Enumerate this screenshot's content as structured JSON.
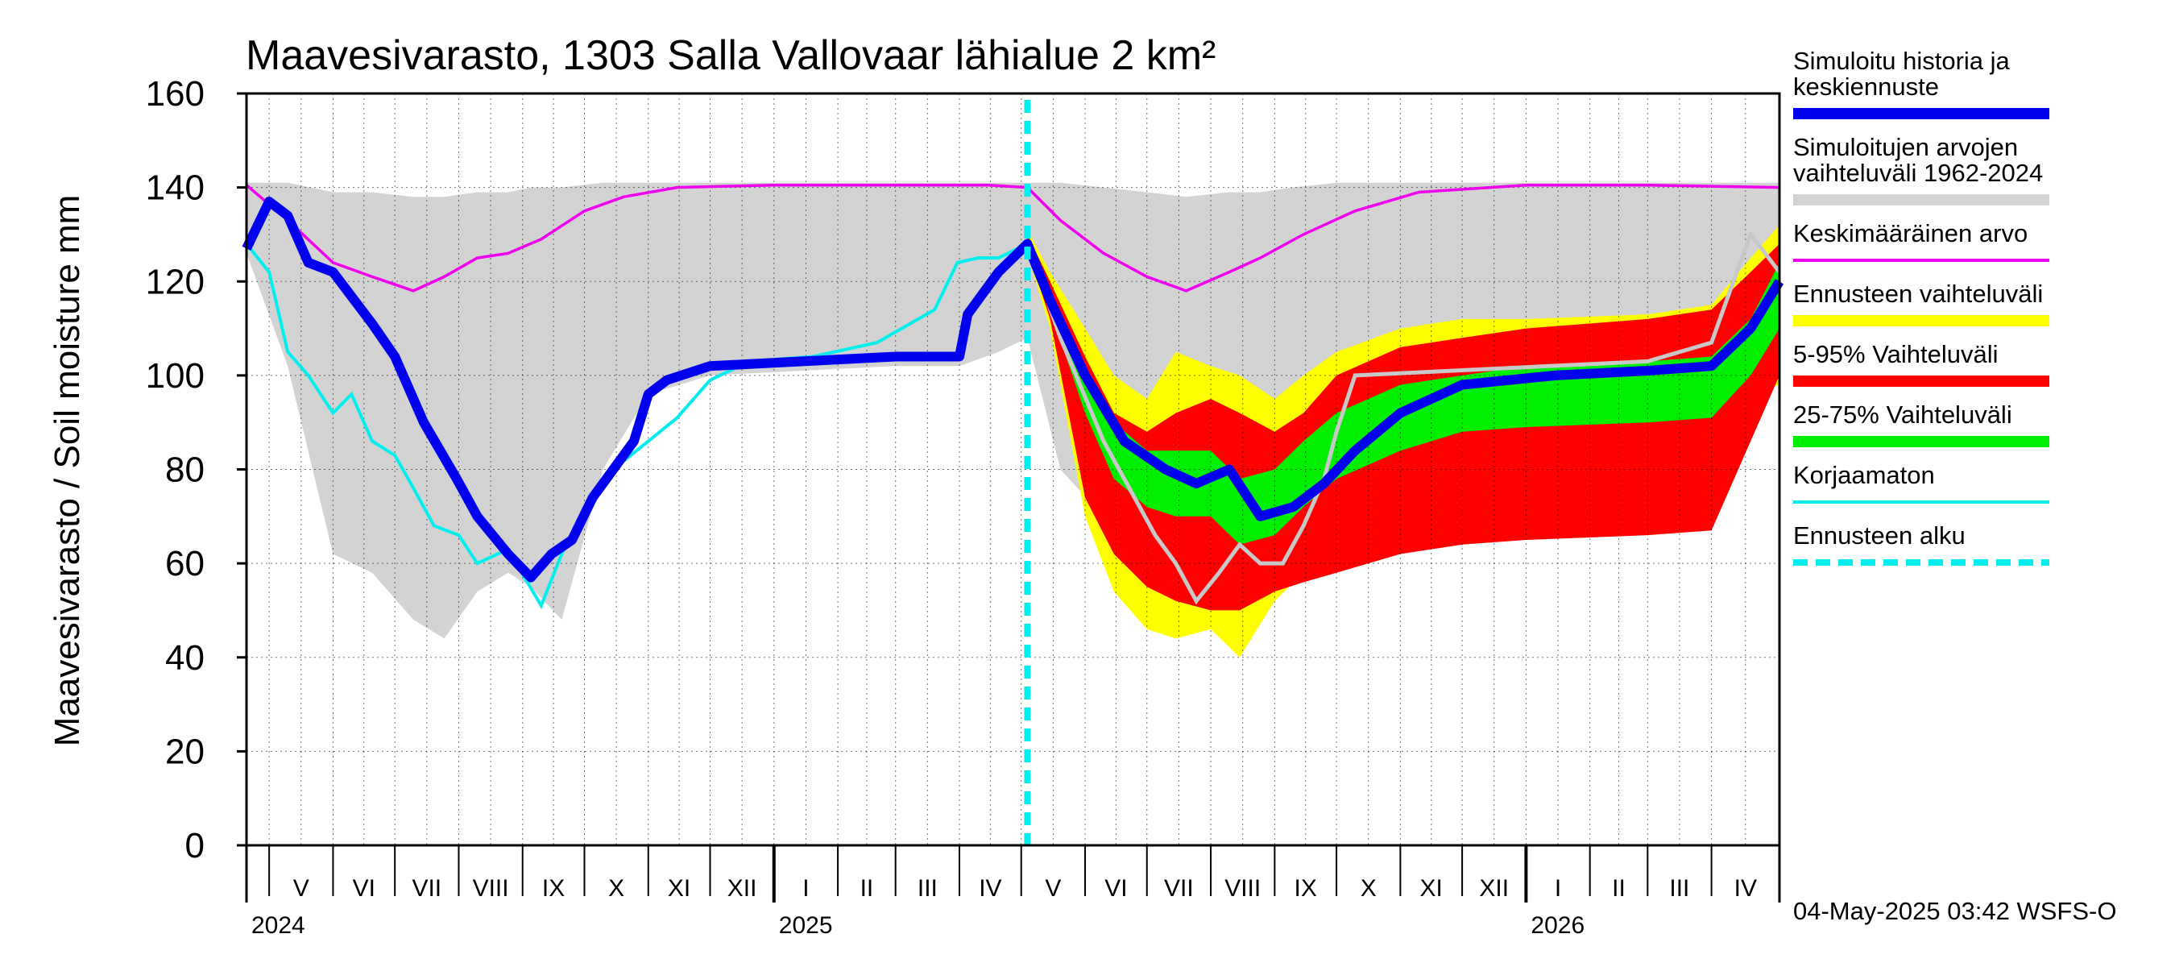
{
  "chart_data": {
    "type": "area",
    "title": "Maavesivarasto, 1303 Salla Vallovaar lähialue 2 km²",
    "ylabel": "Maavesivarasto / Soil moisture   mm",
    "ylim": [
      0,
      160
    ],
    "yticks": [
      "0",
      "20",
      "40",
      "60",
      "80",
      "100",
      "120",
      "140",
      "160"
    ],
    "xlim": [
      "2024-04-20",
      "2026-05-04"
    ],
    "forecast_start": "2025-05-04",
    "months": [
      {
        "label": "V",
        "start": "2024-05-01"
      },
      {
        "label": "VI",
        "start": "2024-06-01"
      },
      {
        "label": "VII",
        "start": "2024-07-01"
      },
      {
        "label": "VIII",
        "start": "2024-08-01"
      },
      {
        "label": "IX",
        "start": "2024-09-01"
      },
      {
        "label": "X",
        "start": "2024-10-01"
      },
      {
        "label": "XI",
        "start": "2024-11-01"
      },
      {
        "label": "XII",
        "start": "2024-12-01"
      },
      {
        "label": "I",
        "start": "2025-01-01"
      },
      {
        "label": "II",
        "start": "2025-02-01"
      },
      {
        "label": "III",
        "start": "2025-03-01"
      },
      {
        "label": "IV",
        "start": "2025-04-01"
      },
      {
        "label": "V",
        "start": "2025-05-01"
      },
      {
        "label": "VI",
        "start": "2025-06-01"
      },
      {
        "label": "VII",
        "start": "2025-07-01"
      },
      {
        "label": "VIII",
        "start": "2025-08-01"
      },
      {
        "label": "IX",
        "start": "2025-09-01"
      },
      {
        "label": "X",
        "start": "2025-10-01"
      },
      {
        "label": "XI",
        "start": "2025-11-01"
      },
      {
        "label": "XII",
        "start": "2025-12-01"
      },
      {
        "label": "I",
        "start": "2026-01-01"
      },
      {
        "label": "II",
        "start": "2026-02-01"
      },
      {
        "label": "III",
        "start": "2026-03-01"
      },
      {
        "label": "IV",
        "start": "2026-04-01"
      }
    ],
    "years": [
      {
        "label": "2024",
        "date": "2024-04-20"
      },
      {
        "label": "2025",
        "date": "2025-01-01"
      },
      {
        "label": "2026",
        "date": "2026-01-01"
      }
    ],
    "grid": true,
    "legend_position": "right",
    "legend": [
      {
        "key": "simulated",
        "lines": [
          "Simuloitu historia ja",
          "keskiennuste"
        ],
        "color": "#0000ee",
        "style": "line-thick"
      },
      {
        "key": "range",
        "lines": [
          "Simuloitujen arvojen",
          "vaihteluväli 1962-2024"
        ],
        "color": "#d3d3d3",
        "style": "line-thick"
      },
      {
        "key": "mean",
        "lines": [
          "Keskimääräinen arvo"
        ],
        "color": "#ee00ee",
        "style": "line-thin"
      },
      {
        "key": "forecast_range",
        "lines": [
          "Ennusteen vaihteluväli"
        ],
        "color": "#ffff00",
        "style": "line-thick"
      },
      {
        "key": "p5_95",
        "lines": [
          "5-95% Vaihteluväli"
        ],
        "color": "#ff0000",
        "style": "line-thick"
      },
      {
        "key": "p25_75",
        "lines": [
          "25-75% Vaihteluväli"
        ],
        "color": "#00ee00",
        "style": "line-thick"
      },
      {
        "key": "uncorrected",
        "lines": [
          "Korjaamaton"
        ],
        "color": "#00eeee",
        "style": "line-thin"
      },
      {
        "key": "forecast_start",
        "lines": [
          "Ennusteen alku"
        ],
        "color": "#00eeee",
        "style": "dashed"
      }
    ],
    "series": {
      "hist_range": {
        "x": [
          "2024-04-20",
          "2024-05-10",
          "2024-06-01",
          "2024-06-20",
          "2024-07-10",
          "2024-07-25",
          "2024-08-10",
          "2024-08-25",
          "2024-09-05",
          "2024-09-20",
          "2024-10-10",
          "2024-11-01",
          "2024-12-01",
          "2025-01-15",
          "2025-03-01",
          "2025-04-01",
          "2025-04-20",
          "2025-05-04",
          "2025-05-20",
          "2025-06-10",
          "2025-07-01",
          "2025-07-20",
          "2025-08-10",
          "2025-08-25",
          "2025-09-10",
          "2025-10-01",
          "2025-11-01",
          "2025-12-01",
          "2026-01-15",
          "2026-03-01",
          "2026-04-01",
          "2026-04-20",
          "2026-05-04"
        ],
        "upper": [
          141,
          141,
          139,
          139,
          138,
          138,
          139,
          139,
          140,
          140,
          141,
          141,
          141,
          141,
          141,
          141,
          141,
          141,
          141,
          140,
          139,
          138,
          139,
          139,
          140,
          141,
          141,
          141,
          141,
          141,
          141,
          141,
          141
        ],
        "lower": [
          126,
          102,
          62,
          58,
          48,
          44,
          54,
          58,
          55,
          48,
          80,
          96,
          100,
          101,
          102,
          102,
          105,
          108,
          80,
          70,
          64,
          62,
          64,
          74,
          80,
          98,
          101,
          101,
          102,
          103,
          104,
          108,
          120
        ]
      },
      "mean": {
        "x": [
          "2024-04-20",
          "2024-05-10",
          "2024-06-01",
          "2024-06-20",
          "2024-07-10",
          "2024-07-25",
          "2024-08-10",
          "2024-08-25",
          "2024-09-10",
          "2024-10-01",
          "2024-10-20",
          "2024-11-15",
          "2025-01-01",
          "2025-03-01",
          "2025-04-15",
          "2025-05-04",
          "2025-05-20",
          "2025-06-10",
          "2025-07-01",
          "2025-07-20",
          "2025-08-10",
          "2025-08-25",
          "2025-09-15",
          "2025-10-10",
          "2025-11-10",
          "2026-01-01",
          "2026-03-01",
          "2026-05-04"
        ],
        "y": [
          140.5,
          133,
          124,
          121,
          118,
          121,
          125,
          126,
          129,
          135,
          138,
          140,
          140.5,
          140.5,
          140.5,
          140,
          133,
          126,
          121,
          118,
          122,
          125,
          130,
          135,
          139,
          140.5,
          140.5,
          140
        ]
      },
      "simulated": {
        "x": [
          "2024-04-20",
          "2024-05-01",
          "2024-05-10",
          "2024-05-20",
          "2024-06-01",
          "2024-06-20",
          "2024-07-01",
          "2024-07-15",
          "2024-07-31",
          "2024-08-10",
          "2024-08-25",
          "2024-09-05",
          "2024-09-15",
          "2024-09-25",
          "2024-10-05",
          "2024-10-15",
          "2024-10-25",
          "2024-11-01",
          "2024-11-10",
          "2024-12-01",
          "2025-01-15",
          "2025-03-01",
          "2025-04-01",
          "2025-04-05",
          "2025-04-20",
          "2025-05-04",
          "2025-05-15",
          "2025-06-01",
          "2025-06-20",
          "2025-07-10",
          "2025-07-25",
          "2025-08-10",
          "2025-08-25",
          "2025-09-10",
          "2025-09-25",
          "2025-10-10",
          "2025-11-01",
          "2025-12-01",
          "2026-01-15",
          "2026-03-01",
          "2026-04-01",
          "2026-04-20",
          "2026-05-04"
        ],
        "y": [
          127,
          137,
          134,
          124,
          122,
          111,
          104,
          90,
          78,
          70,
          62,
          57,
          62,
          65,
          74,
          80,
          86,
          96,
          99,
          102,
          103,
          104,
          104,
          113,
          122,
          128,
          116,
          100,
          86,
          80,
          77,
          80,
          70,
          72,
          77,
          84,
          92,
          98,
          100,
          101,
          102,
          110,
          120
        ]
      },
      "uncorrected": {
        "x": [
          "2024-04-20",
          "2024-05-01",
          "2024-05-10",
          "2024-05-20",
          "2024-06-01",
          "2024-06-10",
          "2024-06-20",
          "2024-07-01",
          "2024-07-10",
          "2024-07-20",
          "2024-08-01",
          "2024-08-10",
          "2024-08-25",
          "2024-09-10",
          "2024-09-20",
          "2024-10-01",
          "2024-10-15",
          "2024-11-01",
          "2024-11-15",
          "2024-12-01",
          "2024-12-20",
          "2025-01-20",
          "2025-02-20",
          "2025-03-20",
          "2025-03-31",
          "2025-04-10",
          "2025-04-20",
          "2025-05-04"
        ],
        "y": [
          128,
          122,
          105,
          100,
          92,
          96,
          86,
          83,
          76,
          68,
          66,
          60,
          63,
          51,
          62,
          72,
          80,
          86,
          91,
          99,
          103,
          104,
          107,
          114,
          124,
          125,
          125,
          128
        ]
      },
      "uncorrected_forecast": {
        "x": [
          "2025-05-04",
          "2025-05-20",
          "2025-06-10",
          "2025-06-25",
          "2025-07-05",
          "2025-07-15",
          "2025-07-25",
          "2025-08-05",
          "2025-08-15",
          "2025-08-25",
          "2025-09-05",
          "2025-09-15",
          "2025-09-25",
          "2025-10-01",
          "2025-10-10",
          "2026-03-01",
          "2026-04-01",
          "2026-04-10",
          "2026-04-20",
          "2026-05-04"
        ],
        "y": [
          128,
          108,
          86,
          74,
          66,
          60,
          52,
          58,
          64,
          60,
          60,
          68,
          78,
          88,
          100,
          103,
          107,
          118,
          130,
          122
        ]
      },
      "forecast_range": {
        "x": [
          "2025-05-04",
          "2025-05-15",
          "2025-06-01",
          "2025-06-15",
          "2025-07-01",
          "2025-07-15",
          "2025-08-01",
          "2025-08-15",
          "2025-09-01",
          "2025-09-15",
          "2025-10-01",
          "2025-11-01",
          "2025-12-01",
          "2026-01-01",
          "2026-03-01",
          "2026-04-01",
          "2026-04-20",
          "2026-05-04"
        ],
        "upper": [
          131,
          122,
          110,
          100,
          95,
          105,
          102,
          100,
          95,
          100,
          105,
          110,
          112,
          112,
          113,
          115,
          125,
          132
        ],
        "lower": [
          126,
          110,
          70,
          54,
          46,
          44,
          46,
          40,
          52,
          58,
          60,
          64,
          66,
          67,
          69,
          70,
          96,
          98
        ]
      },
      "p5_95": {
        "x": [
          "2025-05-04",
          "2025-05-15",
          "2025-06-01",
          "2025-06-15",
          "2025-07-01",
          "2025-07-15",
          "2025-08-01",
          "2025-08-15",
          "2025-09-01",
          "2025-09-15",
          "2025-10-01",
          "2025-11-01",
          "2025-12-01",
          "2026-01-01",
          "2026-03-01",
          "2026-04-01",
          "2026-04-20",
          "2026-05-04"
        ],
        "upper": [
          130,
          120,
          104,
          92,
          88,
          92,
          95,
          92,
          88,
          92,
          100,
          106,
          108,
          110,
          112,
          114,
          122,
          128
        ],
        "lower": [
          127,
          112,
          74,
          62,
          55,
          52,
          50,
          50,
          54,
          56,
          58,
          62,
          64,
          65,
          66,
          67,
          86,
          100
        ]
      },
      "p25_75": {
        "x": [
          "2025-05-04",
          "2025-05-15",
          "2025-06-01",
          "2025-06-15",
          "2025-07-01",
          "2025-07-15",
          "2025-08-01",
          "2025-08-15",
          "2025-09-01",
          "2025-09-15",
          "2025-10-01",
          "2025-11-01",
          "2025-12-01",
          "2026-01-01",
          "2026-03-01",
          "2026-04-01",
          "2026-04-20",
          "2026-05-04"
        ],
        "upper": [
          129,
          118,
          102,
          90,
          84,
          84,
          84,
          78,
          80,
          86,
          92,
          98,
          100,
          102,
          103,
          104,
          112,
          124
        ],
        "lower": [
          128,
          114,
          92,
          78,
          72,
          70,
          70,
          64,
          66,
          72,
          78,
          84,
          88,
          89,
          90,
          91,
          100,
          110
        ]
      }
    }
  },
  "footer": {
    "timestamp": "04-May-2025 03:42 WSFS-O"
  }
}
